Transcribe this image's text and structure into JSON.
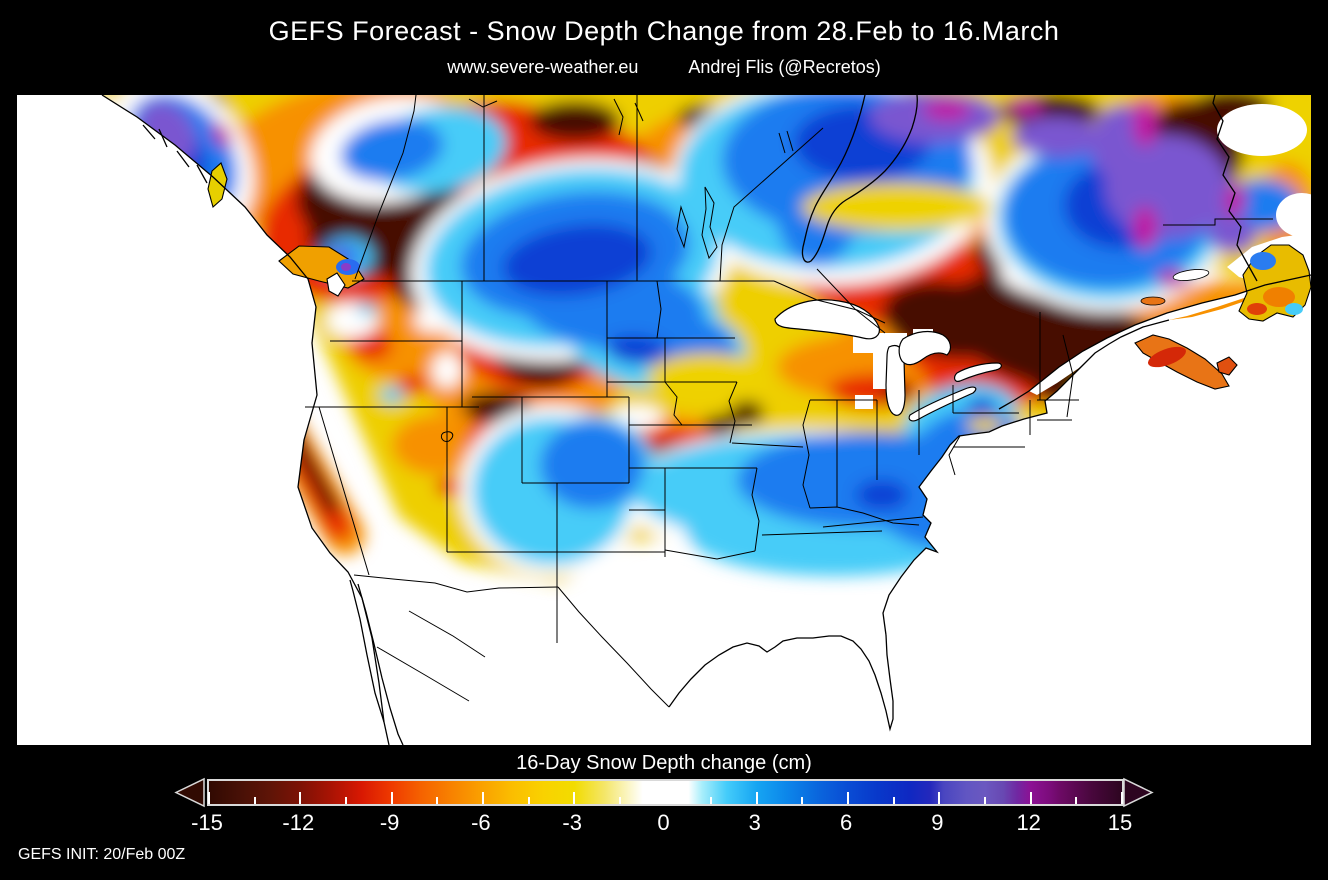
{
  "header": {
    "title": "GEFS Forecast - Snow Depth Change from 28.Feb to 16.March",
    "website": "www.severe-weather.eu",
    "author": "Andrej Flis (@Recretos)"
  },
  "legend": {
    "title": "16-Day Snow Depth change (cm)",
    "ticks": [
      "-15",
      "-12",
      "-9",
      "-6",
      "-3",
      "0",
      "3",
      "6",
      "9",
      "12",
      "15"
    ],
    "range": [
      -15,
      15
    ],
    "minor_tick_interval": 1.5,
    "left_arrow_color": "#310a02",
    "right_arrow_color": "#2d0520",
    "frame_color": "#d9d9d9",
    "gradient": [
      {
        "p": 0,
        "c": "#310a02"
      },
      {
        "p": 3.3,
        "c": "#471006"
      },
      {
        "p": 6.7,
        "c": "#5f1407"
      },
      {
        "p": 10,
        "c": "#7d1205"
      },
      {
        "p": 13.3,
        "c": "#a81304"
      },
      {
        "p": 16.7,
        "c": "#d81802"
      },
      {
        "p": 20,
        "c": "#ef3a00"
      },
      {
        "p": 23.3,
        "c": "#f56300"
      },
      {
        "p": 26.7,
        "c": "#f88300"
      },
      {
        "p": 30,
        "c": "#faa200"
      },
      {
        "p": 33.3,
        "c": "#fbbe00"
      },
      {
        "p": 36.7,
        "c": "#f9d200"
      },
      {
        "p": 40,
        "c": "#f2dc00"
      },
      {
        "p": 43.3,
        "c": "#f4e668"
      },
      {
        "p": 46,
        "c": "#fbf6c8"
      },
      {
        "p": 47.5,
        "c": "#ffffff"
      },
      {
        "p": 52.5,
        "c": "#ffffff"
      },
      {
        "p": 54,
        "c": "#a8eefb"
      },
      {
        "p": 56.7,
        "c": "#44ccfa"
      },
      {
        "p": 60,
        "c": "#16a5f2"
      },
      {
        "p": 63.3,
        "c": "#0c86ea"
      },
      {
        "p": 66.7,
        "c": "#0a66dd"
      },
      {
        "p": 70,
        "c": "#094cd4"
      },
      {
        "p": 73.3,
        "c": "#0838ca"
      },
      {
        "p": 76.7,
        "c": "#0f28c2"
      },
      {
        "p": 79,
        "c": "#2428bc"
      },
      {
        "p": 80.5,
        "c": "#4a46c0"
      },
      {
        "p": 83,
        "c": "#6156c2"
      },
      {
        "p": 85,
        "c": "#6b58c0"
      },
      {
        "p": 87,
        "c": "#6848b2"
      },
      {
        "p": 88.5,
        "c": "#7028a2"
      },
      {
        "p": 90,
        "c": "#8c1194"
      },
      {
        "p": 92,
        "c": "#7c0c7c"
      },
      {
        "p": 93.3,
        "c": "#6c0a64"
      },
      {
        "p": 96.7,
        "c": "#48073c"
      },
      {
        "p": 100,
        "c": "#2d0520"
      }
    ]
  },
  "footer": {
    "init_label": "GEFS INIT: 20/Feb 00Z"
  },
  "colors": {
    "background": "#000000",
    "text": "#ffffff",
    "map_background": "#ffffff",
    "map_outline": "#000000"
  },
  "chart_data": {
    "type": "heatmap",
    "title": "GEFS Forecast - Snow Depth Change from 28.Feb to 16.March",
    "legend_label": "16-Day Snow Depth change (cm)",
    "unit": "cm",
    "region_shown": "North America",
    "scale_ticks": [
      -15,
      -12,
      -9,
      -6,
      -3,
      0,
      3,
      6,
      9,
      12,
      15
    ],
    "scale_range": [
      -15,
      15
    ],
    "init_label": "GEFS INIT: 20/Feb 00Z"
  }
}
